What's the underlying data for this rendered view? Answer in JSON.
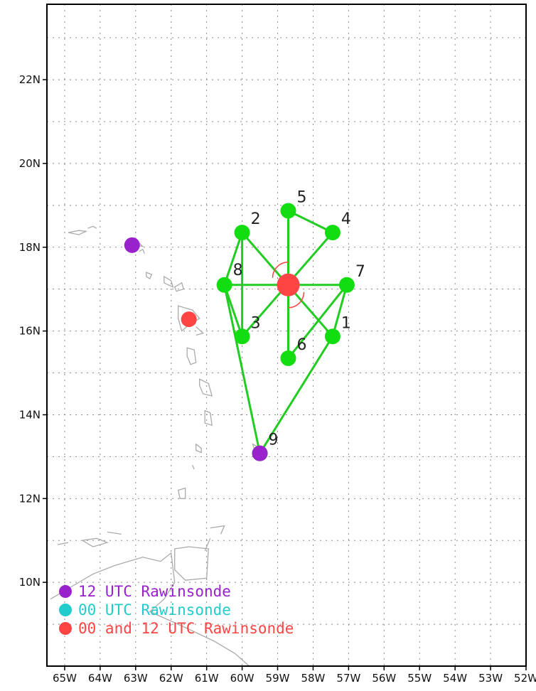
{
  "map": {
    "lon_labels": [
      "65W",
      "64W",
      "63W",
      "62W",
      "61W",
      "60W",
      "59W",
      "58W",
      "57W",
      "56W",
      "55W",
      "54W",
      "53W",
      "52W"
    ],
    "lat_labels": [
      "10N",
      "12N",
      "14N",
      "16N",
      "18N",
      "20N",
      "22N"
    ],
    "lon_range": [
      -65.5,
      -52
    ],
    "lat_range": [
      8,
      23.8
    ],
    "lon_ticks": [
      -65,
      -64,
      -63,
      -62,
      -61,
      -60,
      -59,
      -58,
      -57,
      -56,
      -55,
      -54,
      -53,
      -52
    ],
    "lat_ticks": [
      10,
      12,
      14,
      16,
      18,
      20,
      22
    ],
    "grid": "dotted",
    "colors": {
      "leg": "#22cc22",
      "point": "#11dd11",
      "center": "#ff4444",
      "coast": "#aaaaaa",
      "purple": "#9922cc",
      "cyan": "#22cccc",
      "red": "#ff4444"
    }
  },
  "flight_points": [
    {
      "label": "1",
      "lon": -57.45,
      "lat": 15.87
    },
    {
      "label": "2",
      "lon": -60.0,
      "lat": 18.35
    },
    {
      "label": "3",
      "lon": -60.0,
      "lat": 15.87
    },
    {
      "label": "4",
      "lon": -57.45,
      "lat": 18.35
    },
    {
      "label": "5",
      "lon": -58.7,
      "lat": 18.87
    },
    {
      "label": "6",
      "lon": -58.7,
      "lat": 15.35
    },
    {
      "label": "7",
      "lon": -57.05,
      "lat": 17.1
    },
    {
      "label": "8",
      "lon": -60.5,
      "lat": 17.1
    },
    {
      "label": "9",
      "lon": -59.5,
      "lat": 13.08
    }
  ],
  "storm_center": {
    "lon": -58.7,
    "lat": 17.1
  },
  "rawinsondes": [
    {
      "type": "12",
      "lon": -63.1,
      "lat": 18.05
    },
    {
      "type": "both",
      "lon": -61.5,
      "lat": 16.28
    }
  ],
  "legend": [
    {
      "label": "12 UTC Rawinsonde",
      "color": "#9922cc"
    },
    {
      "label": "00 UTC Rawinsonde",
      "color": "#22cccc"
    },
    {
      "label": "00 and 12 UTC Rawinsonde",
      "color": "#ff4444"
    }
  ]
}
